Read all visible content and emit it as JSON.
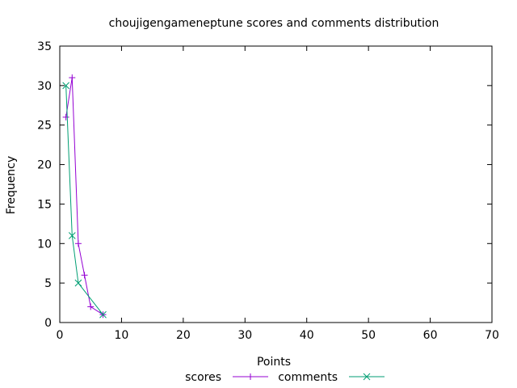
{
  "chart_data": {
    "type": "line",
    "title": "choujigengameneptune scores and comments distribution",
    "xlabel": "Points",
    "ylabel": "Frequency",
    "xlim": [
      0,
      70
    ],
    "ylim": [
      0,
      35
    ],
    "xticks": [
      0,
      10,
      20,
      30,
      40,
      50,
      60,
      70
    ],
    "yticks": [
      0,
      5,
      10,
      15,
      20,
      25,
      30,
      35
    ],
    "grid": false,
    "legend_position": "bottom",
    "series": [
      {
        "name": "scores",
        "color": "#9400d3",
        "marker": "plus",
        "x": [
          1,
          2,
          3,
          4,
          5,
          7
        ],
        "y": [
          26,
          31,
          10,
          6,
          2,
          1
        ]
      },
      {
        "name": "comments",
        "color": "#009e73",
        "marker": "cross",
        "x": [
          1,
          2,
          3,
          7
        ],
        "y": [
          30,
          11,
          5,
          1
        ]
      }
    ]
  }
}
